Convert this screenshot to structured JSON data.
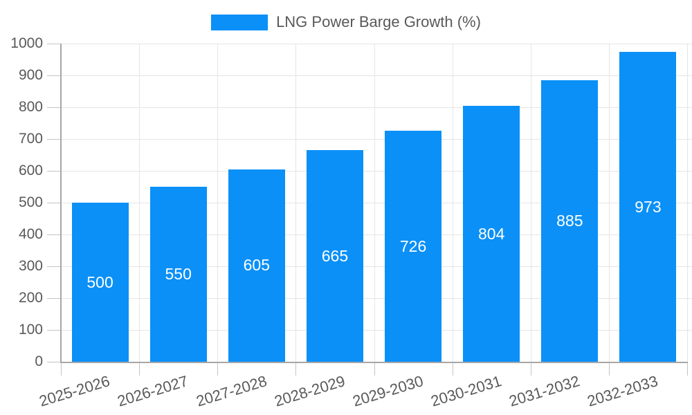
{
  "legend": {
    "label": "LNG Power Barge Growth (%)"
  },
  "chart_data": {
    "type": "bar",
    "title": "",
    "categories": [
      "2025-2026",
      "2026-2027",
      "2027-2028",
      "2028-2029",
      "2029-2030",
      "2030-2031",
      "2031-2032",
      "2032-2033"
    ],
    "values": [
      500,
      550,
      605,
      665,
      726,
      804,
      885,
      973
    ],
    "value_labels": [
      "500",
      "550",
      "605",
      "665",
      "726",
      "804",
      "885",
      "973"
    ],
    "legend_label": "LNG Power Barge Growth (%)",
    "xlabel": "",
    "ylabel": "",
    "ylim": [
      0,
      1000
    ],
    "ytick_step": 100,
    "ytick_labels": [
      "0",
      "100",
      "200",
      "300",
      "400",
      "500",
      "600",
      "700",
      "800",
      "900",
      "1000"
    ],
    "grid": true,
    "legend_position": "top-center",
    "xtick_rotation_deg": -17,
    "colors": {
      "bar": "#0b90f7",
      "value_label": "#ffffff",
      "grid": "#e5e5e5",
      "axis": "#a6a6a6",
      "tick": "#c4c4c4",
      "text": "#595959",
      "background": "#ffffff"
    }
  }
}
